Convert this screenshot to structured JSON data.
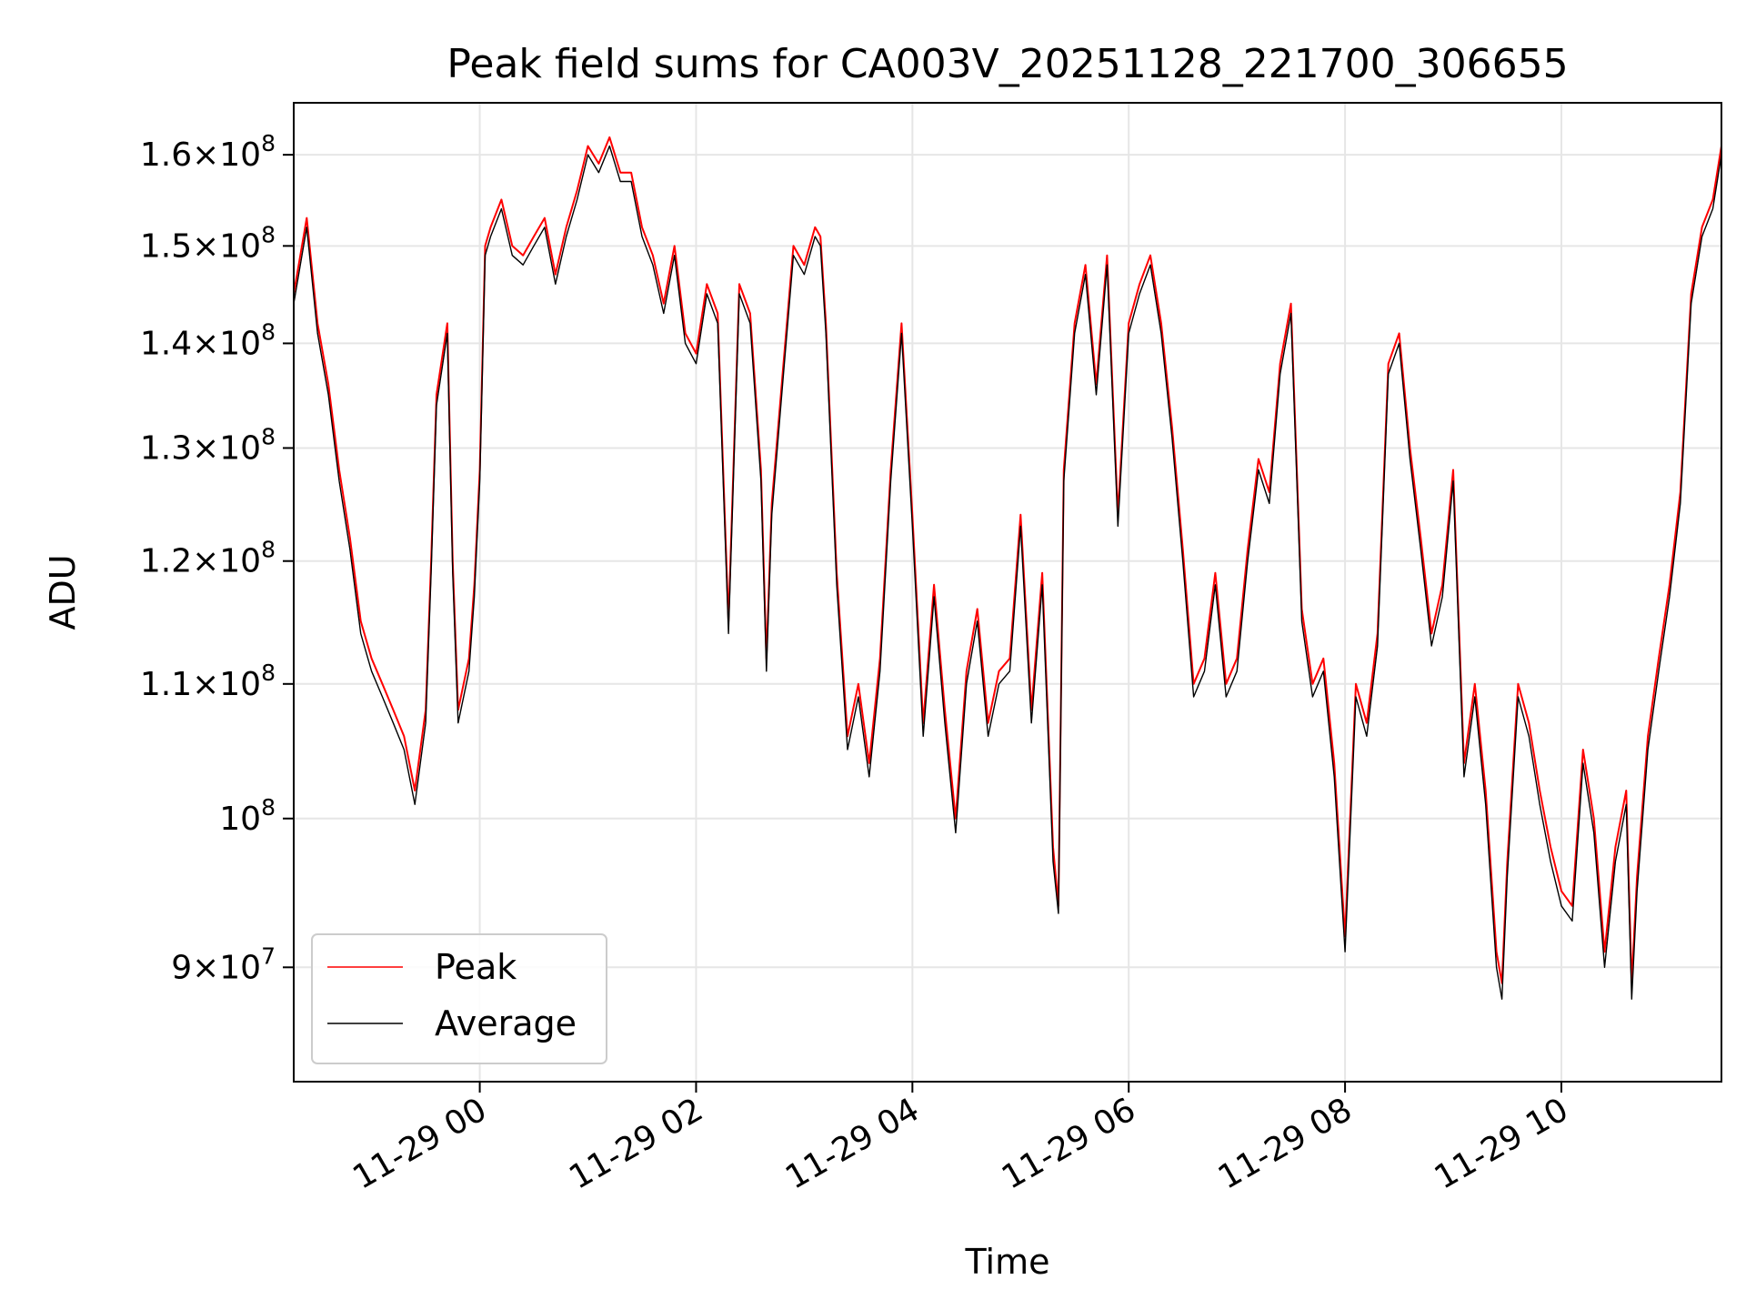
{
  "chart_data": {
    "type": "line",
    "title": "Peak field sums for CA003V_20251128_221700_306655",
    "xlabel": "Time",
    "ylabel": "ADU",
    "yscale": "log",
    "ylim": [
      83000000,
      166000000
    ],
    "xlim_hours": [
      -1.72,
      11.48
    ],
    "grid": true,
    "legend_position": "lower-left",
    "x_ticks": [
      {
        "hour": 0,
        "label": "11-29 00"
      },
      {
        "hour": 2,
        "label": "11-29 02"
      },
      {
        "hour": 4,
        "label": "11-29 04"
      },
      {
        "hour": 6,
        "label": "11-29 06"
      },
      {
        "hour": 8,
        "label": "11-29 08"
      },
      {
        "hour": 10,
        "label": "11-29 10"
      }
    ],
    "y_ticks": [
      {
        "value": 90000000,
        "mantissa": "9",
        "exp": "7"
      },
      {
        "value": 100000000,
        "mantissa": "",
        "exp": "8"
      },
      {
        "value": 110000000,
        "mantissa": "1.1",
        "exp": "8"
      },
      {
        "value": 120000000,
        "mantissa": "1.2",
        "exp": "8"
      },
      {
        "value": 130000000,
        "mantissa": "1.3",
        "exp": "8"
      },
      {
        "value": 140000000,
        "mantissa": "1.4",
        "exp": "8"
      },
      {
        "value": 150000000,
        "mantissa": "1.5",
        "exp": "8"
      },
      {
        "value": 160000000,
        "mantissa": "1.6",
        "exp": "8"
      }
    ],
    "series": [
      {
        "name": "Peak",
        "color": "#ff0000",
        "x_hours": [
          -1.72,
          -1.6,
          -1.5,
          -1.4,
          -1.3,
          -1.2,
          -1.1,
          -1.0,
          -0.9,
          -0.8,
          -0.7,
          -0.6,
          -0.5,
          -0.45,
          -0.4,
          -0.3,
          -0.25,
          -0.2,
          -0.1,
          -0.05,
          0.0,
          0.05,
          0.1,
          0.2,
          0.3,
          0.4,
          0.5,
          0.6,
          0.7,
          0.8,
          0.9,
          1.0,
          1.1,
          1.2,
          1.3,
          1.4,
          1.5,
          1.6,
          1.7,
          1.8,
          1.9,
          2.0,
          2.1,
          2.2,
          2.3,
          2.4,
          2.5,
          2.6,
          2.65,
          2.7,
          2.8,
          2.9,
          3.0,
          3.1,
          3.15,
          3.2,
          3.3,
          3.4,
          3.5,
          3.6,
          3.7,
          3.8,
          3.9,
          4.0,
          4.1,
          4.2,
          4.3,
          4.4,
          4.5,
          4.6,
          4.7,
          4.8,
          4.9,
          5.0,
          5.1,
          5.2,
          5.3,
          5.35,
          5.4,
          5.5,
          5.6,
          5.7,
          5.8,
          5.9,
          6.0,
          6.1,
          6.2,
          6.3,
          6.4,
          6.5,
          6.6,
          6.7,
          6.8,
          6.9,
          7.0,
          7.1,
          7.2,
          7.3,
          7.4,
          7.5,
          7.6,
          7.7,
          7.8,
          7.9,
          8.0,
          8.1,
          8.2,
          8.3,
          8.4,
          8.5,
          8.6,
          8.7,
          8.8,
          8.9,
          9.0,
          9.1,
          9.2,
          9.3,
          9.4,
          9.45,
          9.5,
          9.6,
          9.7,
          9.8,
          9.9,
          10.0,
          10.1,
          10.2,
          10.3,
          10.4,
          10.5,
          10.6,
          10.65,
          10.7,
          10.8,
          10.9,
          11.0,
          11.1,
          11.2,
          11.3,
          11.4,
          11.48
        ],
        "values": [
          145000000,
          153000000,
          142000000,
          136000000,
          128000000,
          122000000,
          115000000,
          112000000,
          110000000,
          108000000,
          106000000,
          102000000,
          108000000,
          120000000,
          135000000,
          142000000,
          120000000,
          108000000,
          112000000,
          118000000,
          128000000,
          150000000,
          152000000,
          155000000,
          150000000,
          149000000,
          151000000,
          153000000,
          147000000,
          152000000,
          156000000,
          161000000,
          159000000,
          162000000,
          158000000,
          158000000,
          152000000,
          149000000,
          144000000,
          150000000,
          141000000,
          139000000,
          146000000,
          143000000,
          115000000,
          146000000,
          143000000,
          128000000,
          112000000,
          125000000,
          137000000,
          150000000,
          148000000,
          152000000,
          151000000,
          142000000,
          119000000,
          106000000,
          110000000,
          104000000,
          112000000,
          128000000,
          142000000,
          124000000,
          107000000,
          118000000,
          108000000,
          100000000,
          111000000,
          116000000,
          107000000,
          111000000,
          112000000,
          124000000,
          108000000,
          119000000,
          98000000,
          94000000,
          128000000,
          142000000,
          148000000,
          136000000,
          149000000,
          124000000,
          142000000,
          146000000,
          149000000,
          142000000,
          132000000,
          121000000,
          110000000,
          112000000,
          119000000,
          110000000,
          112000000,
          121000000,
          129000000,
          126000000,
          138000000,
          144000000,
          116000000,
          110000000,
          112000000,
          104000000,
          92000000,
          110000000,
          107000000,
          114000000,
          138000000,
          141000000,
          130000000,
          122000000,
          114000000,
          118000000,
          128000000,
          104000000,
          110000000,
          102000000,
          91000000,
          89000000,
          97000000,
          110000000,
          107000000,
          102000000,
          98000000,
          95000000,
          94000000,
          105000000,
          100000000,
          91000000,
          98000000,
          102000000,
          89000000,
          96000000,
          106000000,
          112000000,
          118000000,
          126000000,
          145000000,
          152000000,
          155000000,
          161000000
        ]
      },
      {
        "name": "Average",
        "color": "#000000",
        "x_hours": [
          -1.72,
          -1.6,
          -1.5,
          -1.4,
          -1.3,
          -1.2,
          -1.1,
          -1.0,
          -0.9,
          -0.8,
          -0.7,
          -0.6,
          -0.5,
          -0.45,
          -0.4,
          -0.3,
          -0.25,
          -0.2,
          -0.1,
          -0.05,
          0.0,
          0.05,
          0.1,
          0.2,
          0.3,
          0.4,
          0.5,
          0.6,
          0.7,
          0.8,
          0.9,
          1.0,
          1.1,
          1.2,
          1.3,
          1.4,
          1.5,
          1.6,
          1.7,
          1.8,
          1.9,
          2.0,
          2.1,
          2.2,
          2.3,
          2.4,
          2.5,
          2.6,
          2.65,
          2.7,
          2.8,
          2.9,
          3.0,
          3.1,
          3.15,
          3.2,
          3.3,
          3.4,
          3.5,
          3.6,
          3.7,
          3.8,
          3.9,
          4.0,
          4.1,
          4.2,
          4.3,
          4.4,
          4.5,
          4.6,
          4.7,
          4.8,
          4.9,
          5.0,
          5.1,
          5.2,
          5.3,
          5.35,
          5.4,
          5.5,
          5.6,
          5.7,
          5.8,
          5.9,
          6.0,
          6.1,
          6.2,
          6.3,
          6.4,
          6.5,
          6.6,
          6.7,
          6.8,
          6.9,
          7.0,
          7.1,
          7.2,
          7.3,
          7.4,
          7.5,
          7.6,
          7.7,
          7.8,
          7.9,
          8.0,
          8.1,
          8.2,
          8.3,
          8.4,
          8.5,
          8.6,
          8.7,
          8.8,
          8.9,
          9.0,
          9.1,
          9.2,
          9.3,
          9.4,
          9.45,
          9.5,
          9.6,
          9.7,
          9.8,
          9.9,
          10.0,
          10.1,
          10.2,
          10.3,
          10.4,
          10.5,
          10.6,
          10.65,
          10.7,
          10.8,
          10.9,
          11.0,
          11.1,
          11.2,
          11.3,
          11.4,
          11.48
        ],
        "values": [
          144000000,
          152000000,
          141000000,
          135000000,
          127000000,
          121000000,
          114000000,
          111000000,
          109000000,
          107000000,
          105000000,
          101000000,
          107000000,
          119000000,
          134000000,
          141000000,
          119000000,
          107000000,
          111000000,
          117000000,
          127000000,
          149000000,
          151000000,
          154000000,
          149000000,
          148000000,
          150000000,
          152000000,
          146000000,
          151000000,
          155000000,
          160000000,
          158000000,
          161000000,
          157000000,
          157000000,
          151000000,
          148000000,
          143000000,
          149000000,
          140000000,
          138000000,
          145000000,
          142000000,
          114000000,
          145000000,
          142000000,
          127000000,
          111000000,
          124000000,
          136000000,
          149000000,
          147000000,
          151000000,
          150000000,
          141000000,
          118000000,
          105000000,
          109000000,
          103000000,
          111000000,
          127000000,
          141000000,
          123000000,
          106000000,
          117000000,
          107000000,
          99000000,
          110000000,
          115000000,
          106000000,
          110000000,
          111000000,
          123000000,
          107000000,
          118000000,
          97000000,
          93500000,
          127000000,
          141000000,
          147000000,
          135000000,
          148000000,
          123000000,
          141000000,
          145000000,
          148000000,
          141000000,
          131000000,
          120000000,
          109000000,
          111000000,
          118000000,
          109000000,
          111000000,
          120000000,
          128000000,
          125000000,
          137000000,
          143000000,
          115000000,
          109000000,
          111000000,
          103000000,
          91000000,
          109000000,
          106000000,
          113000000,
          137000000,
          140000000,
          129000000,
          121000000,
          113000000,
          117000000,
          127000000,
          103000000,
          109000000,
          101000000,
          90000000,
          88000000,
          96000000,
          109000000,
          106000000,
          101000000,
          97000000,
          94000000,
          93000000,
          104000000,
          99000000,
          90000000,
          97000000,
          101000000,
          88000000,
          95000000,
          105000000,
          111000000,
          117000000,
          125000000,
          144000000,
          151000000,
          154000000,
          160000000
        ]
      }
    ]
  }
}
